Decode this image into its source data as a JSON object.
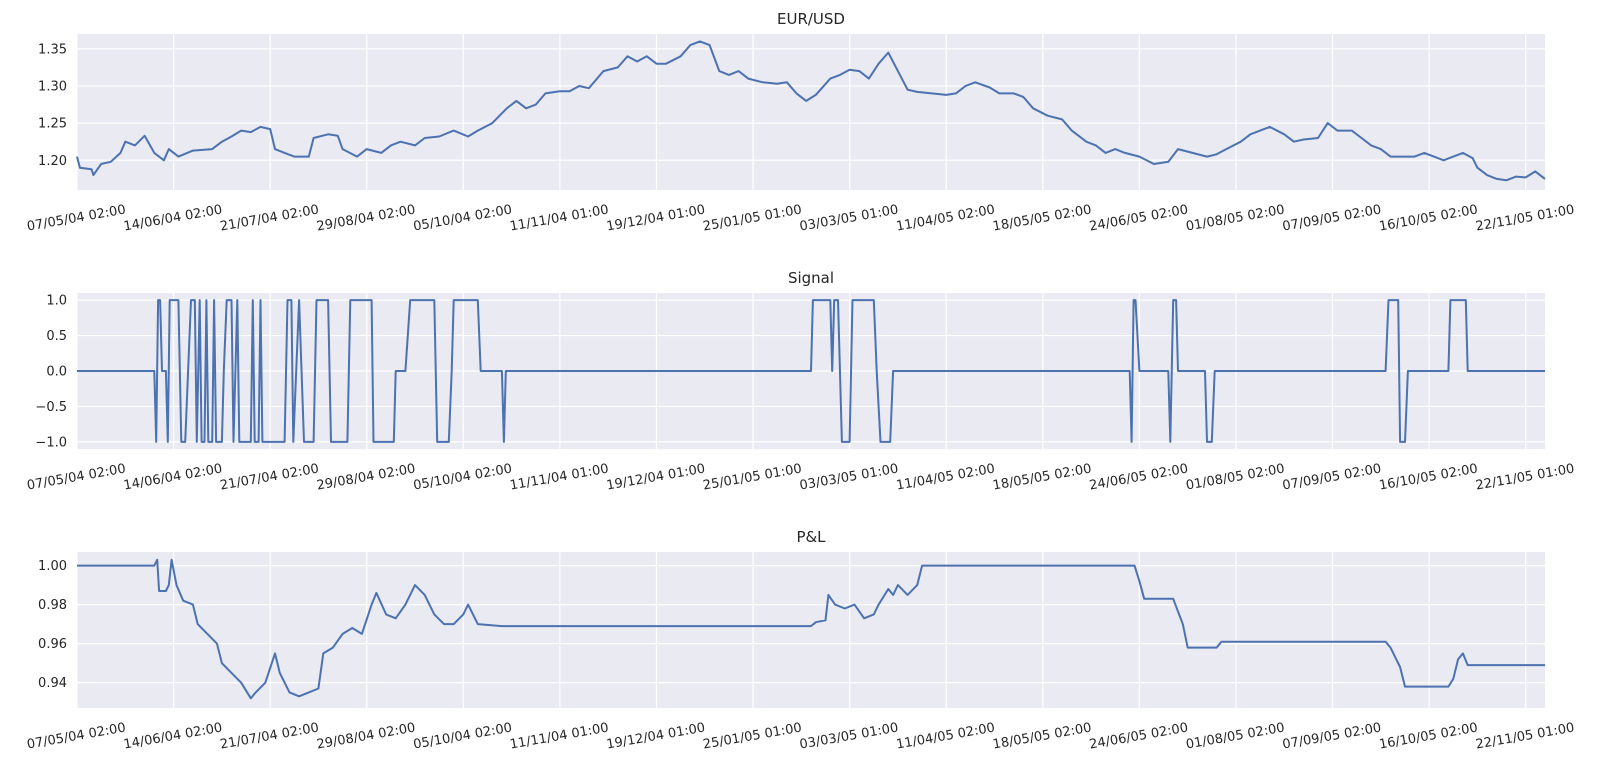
{
  "colors": {
    "background": "#ffffff",
    "plot_bg": "#eaeaf2",
    "grid": "#ffffff",
    "series": "#4c72b0",
    "text": "#262626"
  },
  "chart_data": [
    {
      "type": "line",
      "title": "EUR/USD",
      "xlabel": "",
      "ylabel": "",
      "grid": true,
      "x_tick_labels": [
        "07/05/04 02:00",
        "14/06/04 02:00",
        "21/07/04 02:00",
        "29/08/04 02:00",
        "05/10/04 02:00",
        "11/11/04 01:00",
        "19/12/04 01:00",
        "25/01/05 01:00",
        "03/03/05 01:00",
        "11/04/05 02:00",
        "18/05/05 02:00",
        "24/06/05 02:00",
        "01/08/05 02:00",
        "07/09/05 02:00",
        "16/10/05 02:00",
        "22/11/05 01:00"
      ],
      "y_ticks": [
        1.2,
        1.25,
        1.3,
        1.35
      ],
      "y_tick_labels": [
        "1.20",
        "1.25",
        "1.30",
        "1.35"
      ],
      "ylim": [
        1.16,
        1.37
      ],
      "x_index_range": [
        0,
        15.2
      ],
      "points": [
        [
          0,
          1.205
        ],
        [
          0.03,
          1.19
        ],
        [
          0.15,
          1.188
        ],
        [
          0.17,
          1.18
        ],
        [
          0.25,
          1.195
        ],
        [
          0.35,
          1.198
        ],
        [
          0.45,
          1.21
        ],
        [
          0.5,
          1.225
        ],
        [
          0.6,
          1.22
        ],
        [
          0.7,
          1.233
        ],
        [
          0.8,
          1.21
        ],
        [
          0.9,
          1.2
        ],
        [
          0.95,
          1.215
        ],
        [
          1.05,
          1.205
        ],
        [
          1.2,
          1.213
        ],
        [
          1.4,
          1.215
        ],
        [
          1.5,
          1.225
        ],
        [
          1.6,
          1.232
        ],
        [
          1.7,
          1.24
        ],
        [
          1.8,
          1.238
        ],
        [
          1.9,
          1.245
        ],
        [
          2.0,
          1.242
        ],
        [
          2.05,
          1.215
        ],
        [
          2.15,
          1.21
        ],
        [
          2.25,
          1.205
        ],
        [
          2.4,
          1.205
        ],
        [
          2.45,
          1.23
        ],
        [
          2.6,
          1.235
        ],
        [
          2.7,
          1.233
        ],
        [
          2.75,
          1.215
        ],
        [
          2.9,
          1.205
        ],
        [
          3.0,
          1.215
        ],
        [
          3.15,
          1.21
        ],
        [
          3.25,
          1.22
        ],
        [
          3.35,
          1.225
        ],
        [
          3.5,
          1.22
        ],
        [
          3.6,
          1.23
        ],
        [
          3.75,
          1.232
        ],
        [
          3.9,
          1.24
        ],
        [
          4.05,
          1.232
        ],
        [
          4.15,
          1.24
        ],
        [
          4.3,
          1.25
        ],
        [
          4.45,
          1.27
        ],
        [
          4.55,
          1.28
        ],
        [
          4.65,
          1.27
        ],
        [
          4.75,
          1.275
        ],
        [
          4.85,
          1.29
        ],
        [
          5.0,
          1.293
        ],
        [
          5.1,
          1.293
        ],
        [
          5.2,
          1.3
        ],
        [
          5.3,
          1.297
        ],
        [
          5.45,
          1.32
        ],
        [
          5.6,
          1.325
        ],
        [
          5.7,
          1.34
        ],
        [
          5.8,
          1.333
        ],
        [
          5.9,
          1.34
        ],
        [
          6.0,
          1.33
        ],
        [
          6.1,
          1.33
        ],
        [
          6.25,
          1.34
        ],
        [
          6.35,
          1.355
        ],
        [
          6.45,
          1.36
        ],
        [
          6.55,
          1.355
        ],
        [
          6.65,
          1.32
        ],
        [
          6.75,
          1.315
        ],
        [
          6.85,
          1.32
        ],
        [
          6.95,
          1.31
        ],
        [
          7.1,
          1.305
        ],
        [
          7.25,
          1.303
        ],
        [
          7.35,
          1.305
        ],
        [
          7.45,
          1.29
        ],
        [
          7.55,
          1.28
        ],
        [
          7.65,
          1.288
        ],
        [
          7.8,
          1.31
        ],
        [
          7.9,
          1.315
        ],
        [
          8.0,
          1.322
        ],
        [
          8.1,
          1.32
        ],
        [
          8.2,
          1.31
        ],
        [
          8.3,
          1.33
        ],
        [
          8.4,
          1.345
        ],
        [
          8.5,
          1.32
        ],
        [
          8.6,
          1.295
        ],
        [
          8.7,
          1.292
        ],
        [
          8.85,
          1.29
        ],
        [
          9.0,
          1.288
        ],
        [
          9.1,
          1.29
        ],
        [
          9.2,
          1.3
        ],
        [
          9.3,
          1.305
        ],
        [
          9.45,
          1.298
        ],
        [
          9.55,
          1.29
        ],
        [
          9.7,
          1.29
        ],
        [
          9.8,
          1.285
        ],
        [
          9.9,
          1.27
        ],
        [
          10.05,
          1.26
        ],
        [
          10.2,
          1.255
        ],
        [
          10.3,
          1.24
        ],
        [
          10.45,
          1.225
        ],
        [
          10.55,
          1.22
        ],
        [
          10.65,
          1.21
        ],
        [
          10.75,
          1.215
        ],
        [
          10.85,
          1.21
        ],
        [
          11.0,
          1.205
        ],
        [
          11.15,
          1.195
        ],
        [
          11.3,
          1.198
        ],
        [
          11.4,
          1.215
        ],
        [
          11.55,
          1.21
        ],
        [
          11.7,
          1.205
        ],
        [
          11.8,
          1.208
        ],
        [
          11.9,
          1.215
        ],
        [
          12.05,
          1.225
        ],
        [
          12.15,
          1.235
        ],
        [
          12.25,
          1.24
        ],
        [
          12.35,
          1.245
        ],
        [
          12.5,
          1.235
        ],
        [
          12.6,
          1.225
        ],
        [
          12.7,
          1.228
        ],
        [
          12.85,
          1.23
        ],
        [
          12.95,
          1.25
        ],
        [
          13.05,
          1.24
        ],
        [
          13.2,
          1.24
        ],
        [
          13.3,
          1.23
        ],
        [
          13.4,
          1.22
        ],
        [
          13.5,
          1.215
        ],
        [
          13.6,
          1.205
        ],
        [
          13.75,
          1.205
        ],
        [
          13.85,
          1.205
        ],
        [
          13.95,
          1.21
        ],
        [
          14.05,
          1.205
        ],
        [
          14.15,
          1.2
        ],
        [
          14.25,
          1.205
        ],
        [
          14.35,
          1.21
        ],
        [
          14.45,
          1.203
        ],
        [
          14.5,
          1.19
        ],
        [
          14.6,
          1.18
        ],
        [
          14.7,
          1.175
        ],
        [
          14.8,
          1.173
        ],
        [
          14.9,
          1.178
        ],
        [
          15.0,
          1.177
        ],
        [
          15.1,
          1.185
        ],
        [
          15.2,
          1.175
        ]
      ]
    },
    {
      "type": "line",
      "title": "Signal",
      "xlabel": "",
      "ylabel": "",
      "grid": true,
      "x_tick_labels": [
        "07/05/04 02:00",
        "14/06/04 02:00",
        "21/07/04 02:00",
        "29/08/04 02:00",
        "05/10/04 02:00",
        "11/11/04 01:00",
        "19/12/04 01:00",
        "25/01/05 01:00",
        "03/03/05 01:00",
        "11/04/05 02:00",
        "18/05/05 02:00",
        "24/06/05 02:00",
        "01/08/05 02:00",
        "07/09/05 02:00",
        "16/10/05 02:00",
        "22/11/05 01:00"
      ],
      "y_ticks": [
        -1.0,
        -0.5,
        0.0,
        0.5,
        1.0
      ],
      "y_tick_labels": [
        "−1.0",
        "−0.5",
        "0.0",
        "0.5",
        "1.0"
      ],
      "ylim": [
        -1.1,
        1.1
      ],
      "x_index_range": [
        0,
        15.2
      ],
      "points": [
        [
          0,
          0
        ],
        [
          0.8,
          0
        ],
        [
          0.82,
          -1
        ],
        [
          0.84,
          1
        ],
        [
          0.86,
          1
        ],
        [
          0.88,
          0
        ],
        [
          0.92,
          0
        ],
        [
          0.94,
          -1
        ],
        [
          0.96,
          1
        ],
        [
          1.05,
          1
        ],
        [
          1.08,
          -1
        ],
        [
          1.12,
          -1
        ],
        [
          1.15,
          0
        ],
        [
          1.18,
          1
        ],
        [
          1.22,
          1
        ],
        [
          1.24,
          -1
        ],
        [
          1.27,
          1
        ],
        [
          1.29,
          -1
        ],
        [
          1.32,
          -1
        ],
        [
          1.34,
          1
        ],
        [
          1.36,
          -1
        ],
        [
          1.4,
          -1
        ],
        [
          1.42,
          1
        ],
        [
          1.44,
          -1
        ],
        [
          1.5,
          -1
        ],
        [
          1.52,
          0
        ],
        [
          1.55,
          1
        ],
        [
          1.6,
          1
        ],
        [
          1.62,
          -1
        ],
        [
          1.66,
          1
        ],
        [
          1.68,
          -1
        ],
        [
          1.8,
          -1
        ],
        [
          1.82,
          1
        ],
        [
          1.84,
          -1
        ],
        [
          1.88,
          -1
        ],
        [
          1.9,
          1
        ],
        [
          1.92,
          -1
        ],
        [
          2.15,
          -1
        ],
        [
          2.18,
          1
        ],
        [
          2.22,
          1
        ],
        [
          2.24,
          -1
        ],
        [
          2.3,
          1
        ],
        [
          2.35,
          -1
        ],
        [
          2.45,
          -1
        ],
        [
          2.48,
          1
        ],
        [
          2.6,
          1
        ],
        [
          2.63,
          -1
        ],
        [
          2.8,
          -1
        ],
        [
          2.83,
          1
        ],
        [
          3.05,
          1
        ],
        [
          3.07,
          -1
        ],
        [
          3.28,
          -1
        ],
        [
          3.3,
          0
        ],
        [
          3.4,
          0
        ],
        [
          3.45,
          1
        ],
        [
          3.7,
          1
        ],
        [
          3.73,
          -1
        ],
        [
          3.85,
          -1
        ],
        [
          3.88,
          0
        ],
        [
          3.9,
          1
        ],
        [
          4.15,
          1
        ],
        [
          4.18,
          0
        ],
        [
          4.4,
          0
        ],
        [
          4.42,
          -1
        ],
        [
          4.44,
          0
        ],
        [
          7.6,
          0
        ],
        [
          7.62,
          1
        ],
        [
          7.8,
          1
        ],
        [
          7.82,
          0
        ],
        [
          7.84,
          1
        ],
        [
          7.88,
          1
        ],
        [
          7.92,
          -1
        ],
        [
          8.0,
          -1
        ],
        [
          8.03,
          1
        ],
        [
          8.25,
          1
        ],
        [
          8.28,
          0
        ],
        [
          8.32,
          -1
        ],
        [
          8.42,
          -1
        ],
        [
          8.45,
          0
        ],
        [
          10.9,
          0
        ],
        [
          10.92,
          -1
        ],
        [
          10.94,
          1
        ],
        [
          10.96,
          1
        ],
        [
          11.0,
          0
        ],
        [
          11.3,
          0
        ],
        [
          11.32,
          -1
        ],
        [
          11.35,
          1
        ],
        [
          11.38,
          1
        ],
        [
          11.4,
          0
        ],
        [
          11.68,
          0
        ],
        [
          11.7,
          -1
        ],
        [
          11.75,
          -1
        ],
        [
          11.78,
          0
        ],
        [
          13.55,
          0
        ],
        [
          13.58,
          1
        ],
        [
          13.68,
          1
        ],
        [
          13.7,
          -1
        ],
        [
          13.75,
          -1
        ],
        [
          13.78,
          0
        ],
        [
          14.2,
          0
        ],
        [
          14.22,
          1
        ],
        [
          14.38,
          1
        ],
        [
          14.4,
          0
        ],
        [
          15.2,
          0
        ]
      ]
    },
    {
      "type": "line",
      "title": "P&L",
      "xlabel": "",
      "ylabel": "",
      "grid": true,
      "x_tick_labels": [
        "07/05/04 02:00",
        "14/06/04 02:00",
        "21/07/04 02:00",
        "29/08/04 02:00",
        "05/10/04 02:00",
        "11/11/04 01:00",
        "19/12/04 01:00",
        "25/01/05 01:00",
        "03/03/05 01:00",
        "11/04/05 02:00",
        "18/05/05 02:00",
        "24/06/05 02:00",
        "01/08/05 02:00",
        "07/09/05 02:00",
        "16/10/05 02:00",
        "22/11/05 01:00"
      ],
      "y_ticks": [
        0.94,
        0.96,
        0.98,
        1.0
      ],
      "y_tick_labels": [
        "0.94",
        "0.96",
        "0.98",
        "1.00"
      ],
      "ylim": [
        0.927,
        1.007
      ],
      "x_index_range": [
        0,
        15.2
      ],
      "points": [
        [
          0,
          1.0
        ],
        [
          0.8,
          1.0
        ],
        [
          0.83,
          1.003
        ],
        [
          0.85,
          0.987
        ],
        [
          0.92,
          0.987
        ],
        [
          0.95,
          0.99
        ],
        [
          0.98,
          1.003
        ],
        [
          1.03,
          0.99
        ],
        [
          1.1,
          0.982
        ],
        [
          1.2,
          0.98
        ],
        [
          1.25,
          0.97
        ],
        [
          1.35,
          0.965
        ],
        [
          1.45,
          0.96
        ],
        [
          1.5,
          0.95
        ],
        [
          1.6,
          0.945
        ],
        [
          1.7,
          0.94
        ],
        [
          1.8,
          0.932
        ],
        [
          1.85,
          0.935
        ],
        [
          1.95,
          0.94
        ],
        [
          2.05,
          0.955
        ],
        [
          2.1,
          0.945
        ],
        [
          2.2,
          0.935
        ],
        [
          2.3,
          0.933
        ],
        [
          2.4,
          0.935
        ],
        [
          2.5,
          0.937
        ],
        [
          2.55,
          0.955
        ],
        [
          2.65,
          0.958
        ],
        [
          2.75,
          0.965
        ],
        [
          2.85,
          0.968
        ],
        [
          2.95,
          0.965
        ],
        [
          3.05,
          0.98
        ],
        [
          3.1,
          0.986
        ],
        [
          3.2,
          0.975
        ],
        [
          3.3,
          0.973
        ],
        [
          3.4,
          0.98
        ],
        [
          3.5,
          0.99
        ],
        [
          3.6,
          0.985
        ],
        [
          3.7,
          0.975
        ],
        [
          3.8,
          0.97
        ],
        [
          3.9,
          0.97
        ],
        [
          4.0,
          0.975
        ],
        [
          4.05,
          0.98
        ],
        [
          4.15,
          0.97
        ],
        [
          4.4,
          0.969
        ],
        [
          7.6,
          0.969
        ],
        [
          7.65,
          0.971
        ],
        [
          7.75,
          0.972
        ],
        [
          7.78,
          0.985
        ],
        [
          7.85,
          0.98
        ],
        [
          7.95,
          0.978
        ],
        [
          8.05,
          0.98
        ],
        [
          8.15,
          0.973
        ],
        [
          8.25,
          0.975
        ],
        [
          8.3,
          0.98
        ],
        [
          8.4,
          0.988
        ],
        [
          8.45,
          0.985
        ],
        [
          8.5,
          0.99
        ],
        [
          8.6,
          0.985
        ],
        [
          8.7,
          0.99
        ],
        [
          8.75,
          1.0
        ],
        [
          10.95,
          1.0
        ],
        [
          11.0,
          0.992
        ],
        [
          11.05,
          0.983
        ],
        [
          11.35,
          0.983
        ],
        [
          11.45,
          0.97
        ],
        [
          11.5,
          0.958
        ],
        [
          11.8,
          0.958
        ],
        [
          11.85,
          0.961
        ],
        [
          13.55,
          0.961
        ],
        [
          13.6,
          0.958
        ],
        [
          13.7,
          0.948
        ],
        [
          13.75,
          0.938
        ],
        [
          14.2,
          0.938
        ],
        [
          14.25,
          0.942
        ],
        [
          14.3,
          0.952
        ],
        [
          14.35,
          0.955
        ],
        [
          14.4,
          0.949
        ],
        [
          15.2,
          0.949
        ]
      ]
    }
  ]
}
